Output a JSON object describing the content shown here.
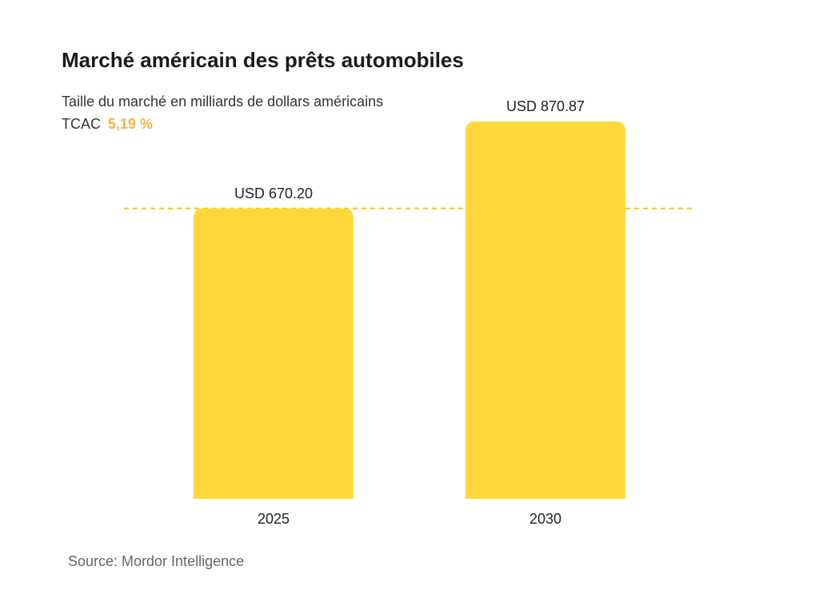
{
  "title": "Marché américain des prêts automobiles",
  "subtitle": "Taille du marché en milliards de dollars américains",
  "cagr_label": "TCAC",
  "cagr_value": "5,19 %",
  "source": "Source: Mordor Intelligence",
  "colors": {
    "bar": "#FFD93B",
    "accent": "#F5B342",
    "reference_line": "#F5C518"
  },
  "chart_data": {
    "type": "bar",
    "categories": [
      "2025",
      "2030"
    ],
    "values": [
      670.2,
      870.87
    ],
    "data_labels": [
      "USD 670.20",
      "USD 870.87"
    ],
    "title": "Marché américain des prêts automobiles",
    "xlabel": "",
    "ylabel": "Taille du marché en milliards de dollars américains",
    "ylim": [
      0,
      870.87
    ],
    "reference_line": {
      "value": 670.2,
      "style": "dashed"
    },
    "grid": false
  }
}
